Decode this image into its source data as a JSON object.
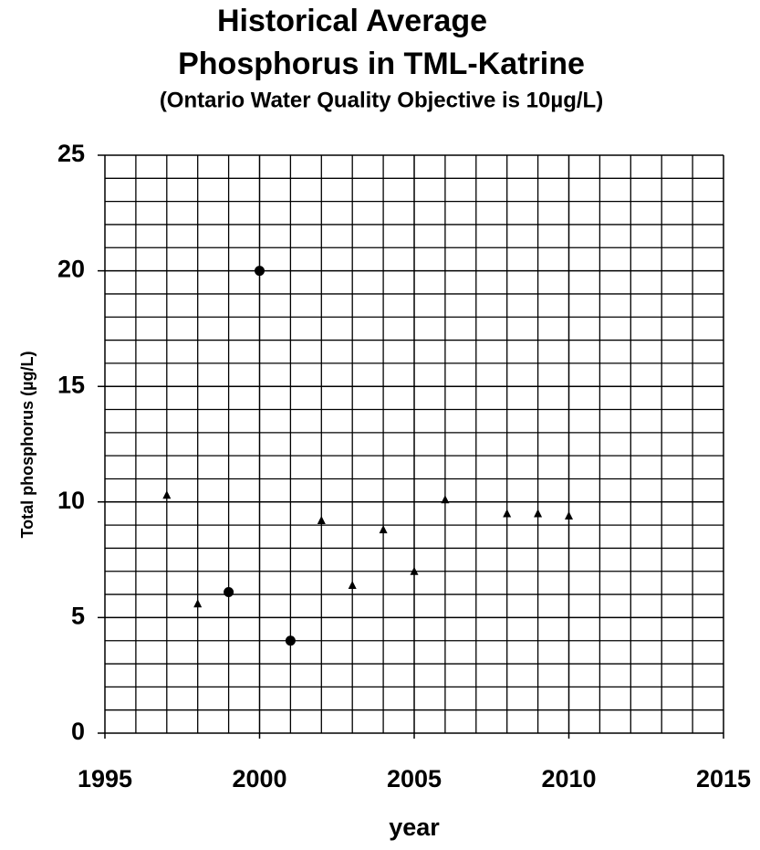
{
  "chart_data": {
    "type": "scatter",
    "title": [
      "Historical Average",
      "Phosphorus in TML-Katrine"
    ],
    "subtitle": "(Ontario Water Quality Objective is 10µg/L)",
    "x_label": "year",
    "y_label": "Total phosphorus (µg/L)",
    "xlim": [
      1995,
      2015
    ],
    "xticks": [
      1995,
      2000,
      2005,
      2010,
      2015
    ],
    "ylim": [
      0,
      25
    ],
    "yticks": [
      0,
      5,
      10,
      15,
      20,
      25
    ],
    "grid": true,
    "series": [
      {
        "marker": "triangle",
        "color": "#000000",
        "x": [
          1997,
          1998,
          2002,
          2003,
          2004,
          2005,
          2006,
          2008,
          2009,
          2010
        ],
        "values": [
          10.3,
          5.6,
          9.2,
          6.4,
          8.8,
          7.0,
          10.1,
          9.5,
          9.5,
          9.4
        ]
      },
      {
        "marker": "circle",
        "color": "#000000",
        "x": [
          1999,
          2000,
          2001
        ],
        "values": [
          6.1,
          20.0,
          4.0
        ]
      }
    ]
  }
}
